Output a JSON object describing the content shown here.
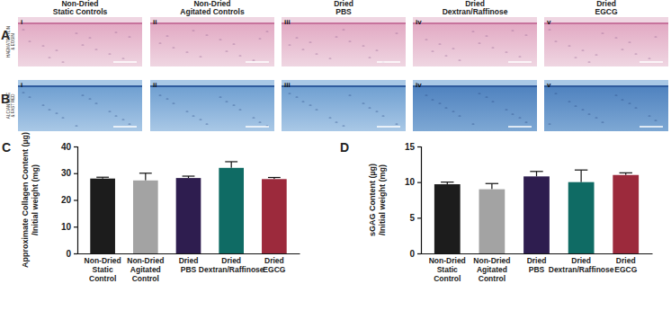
{
  "panels": {
    "letters": [
      "A",
      "B",
      "C",
      "D"
    ],
    "columns": [
      "Non-Dried\nStatic Controls",
      "Non-Dried\nAgitated Controls",
      "Dried\nPBS",
      "Dried\nDextran/Raffinose",
      "Dried\nEGCG"
    ],
    "rows": [
      "HAEMATOXYLIN\n& EOSIN",
      "ALCIAN BLUE\n& FAST RED"
    ],
    "sub_labels": [
      "i",
      "ii",
      "iii",
      "iv",
      "v"
    ]
  },
  "chart_data": [
    {
      "type": "bar",
      "categories": [
        "Non-Dried\nStatic\nControl",
        "Non-Dried\nAgitated\nControl",
        "Dried\nPBS",
        "Dried\nDextran/Raffinose",
        "Dried\nEGCG"
      ],
      "values": [
        28.0,
        27.3,
        28.2,
        32.0,
        27.8
      ],
      "errors": [
        0.5,
        2.7,
        0.7,
        2.3,
        0.6
      ],
      "colors": [
        "#1c1c1c",
        "#a3a3a3",
        "#2e1d4f",
        "#0f6b64",
        "#9c2a3c"
      ],
      "y_label": "Approximate Collagen Content (µg)\n/Initial weight (mg)",
      "ylim": [
        0,
        40
      ],
      "yticks": [
        0,
        10,
        20,
        30,
        40
      ]
    },
    {
      "type": "bar",
      "categories": [
        "Non-Dried\nStatic\nControl",
        "Non-Dried\nAgitated\nControl",
        "Dried\nPBS",
        "Dried\nDextran/Raffinose",
        "Dried\nEGCG"
      ],
      "values": [
        9.7,
        9.0,
        10.8,
        10.0,
        11.0
      ],
      "errors": [
        0.3,
        0.8,
        0.7,
        1.7,
        0.3
      ],
      "colors": [
        "#1c1c1c",
        "#a3a3a3",
        "#2e1d4f",
        "#0f6b64",
        "#9c2a3c"
      ],
      "y_label": "sGAG Content (µg)\n/Initial weight (mg)",
      "ylim": [
        0,
        15
      ],
      "yticks": [
        0,
        5,
        10,
        15
      ]
    }
  ]
}
